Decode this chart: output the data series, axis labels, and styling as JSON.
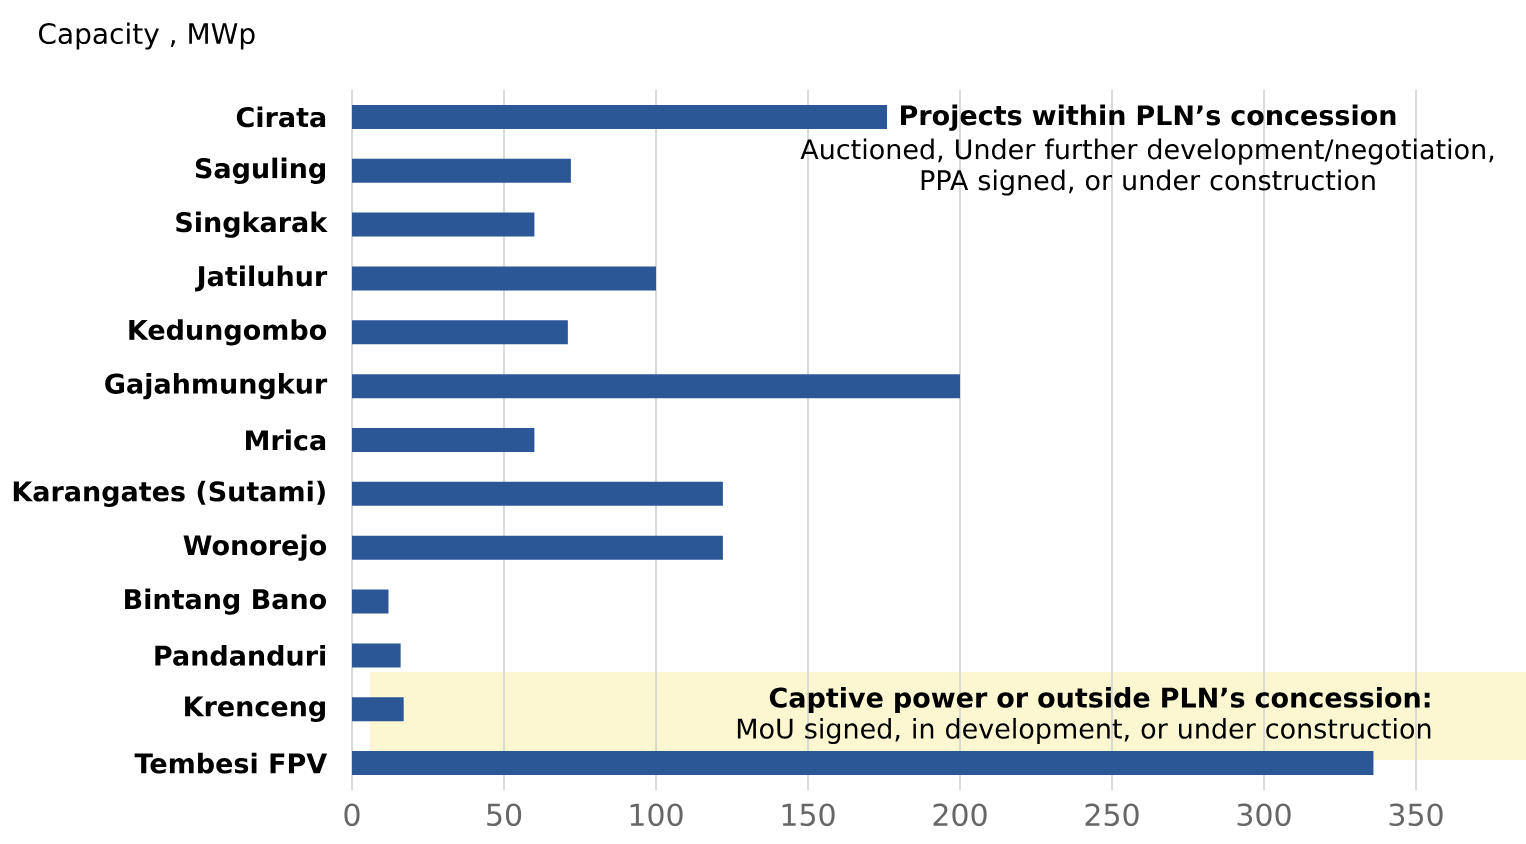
{
  "chart_data": {
    "type": "bar",
    "orientation": "horizontal",
    "xlabel": "Capacity , MWp",
    "categories": [
      "Cirata",
      "Saguling",
      "Singkarak",
      "Jatiluhur",
      "Kedungombo",
      "Gajahmungkur",
      "Mrica",
      "Karangates (Sutami)",
      "Wonorejo",
      "Bintang Bano",
      "Pandanduri",
      "Krenceng",
      "Tembesi FPV"
    ],
    "values": [
      176,
      72,
      60,
      100,
      71,
      200,
      60,
      122,
      122,
      12,
      16,
      17,
      336
    ],
    "color": "#2b5797",
    "xlim": [
      0,
      350
    ],
    "xticks": [
      0,
      50,
      100,
      150,
      200,
      250,
      300,
      350
    ],
    "grid": "x",
    "annotations": [
      "Projects within PLN’s concession",
      "Auctioned, Under further development/negotiation, PPA signed, or under construction",
      "Captive power or outside PLN’s concession:",
      "MoU signed, in development, or under construction"
    ]
  }
}
